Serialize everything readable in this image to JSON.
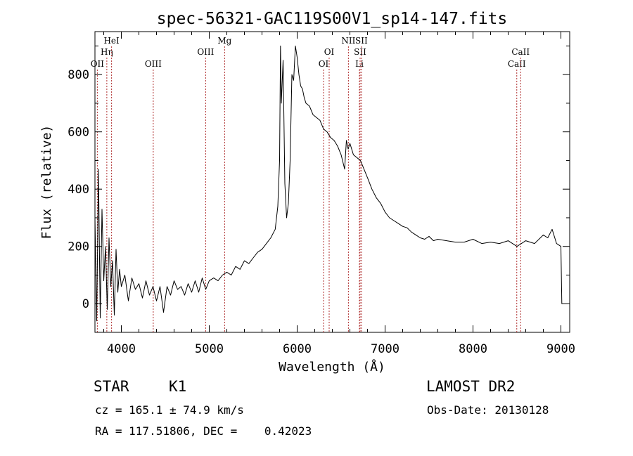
{
  "chart_data": {
    "type": "line",
    "title": "spec-56321-GAC119S00V1_sp14-147.fits",
    "xlabel": "Wavelength (Å)",
    "ylabel": "Flux (relative)",
    "xlim": [
      3700,
      9100
    ],
    "ylim": [
      -100,
      950
    ],
    "xticks": [
      4000,
      5000,
      6000,
      7000,
      8000,
      9000
    ],
    "yticks": [
      0,
      200,
      400,
      600,
      800
    ],
    "grid": false,
    "line_color": "#000000",
    "marker_color": "#b03030",
    "series": [
      {
        "x": [
          3700,
          3720,
          3740,
          3760,
          3780,
          3800,
          3820,
          3840,
          3860,
          3880,
          3900,
          3920,
          3940,
          3960,
          3980,
          4000,
          4040,
          4080,
          4120,
          4160,
          4200,
          4240,
          4280,
          4320,
          4360,
          4400,
          4440,
          4480,
          4520,
          4560,
          4600,
          4640,
          4680,
          4720,
          4760,
          4800,
          4840,
          4880,
          4920,
          4960,
          5000,
          5050,
          5100,
          5150,
          5200,
          5250,
          5300,
          5350,
          5400,
          5450,
          5500,
          5550,
          5600,
          5650,
          5700,
          5750,
          5780,
          5800,
          5810,
          5820,
          5840,
          5860,
          5880,
          5900,
          5920,
          5940,
          5960,
          5980,
          6000,
          6020,
          6040,
          6060,
          6080,
          6100,
          6140,
          6180,
          6220,
          6260,
          6300,
          6340,
          6380,
          6420,
          6460,
          6500,
          6540,
          6560,
          6580,
          6600,
          6640,
          6680,
          6720,
          6760,
          6800,
          6850,
          6900,
          6950,
          7000,
          7050,
          7100,
          7150,
          7200,
          7250,
          7300,
          7350,
          7400,
          7450,
          7500,
          7550,
          7600,
          7700,
          7800,
          7900,
          8000,
          8100,
          8200,
          8300,
          8400,
          8500,
          8600,
          8700,
          8800,
          8850,
          8900,
          8950,
          9000,
          9010,
          9020
        ],
        "y": [
          300,
          -60,
          470,
          -50,
          330,
          80,
          200,
          -20,
          230,
          60,
          150,
          -40,
          190,
          40,
          120,
          60,
          100,
          10,
          90,
          50,
          70,
          20,
          80,
          30,
          60,
          10,
          60,
          -30,
          60,
          30,
          80,
          50,
          60,
          30,
          70,
          40,
          80,
          40,
          90,
          50,
          80,
          90,
          80,
          100,
          110,
          100,
          130,
          120,
          150,
          140,
          160,
          180,
          190,
          210,
          230,
          260,
          340,
          500,
          900,
          700,
          850,
          420,
          300,
          350,
          500,
          800,
          780,
          900,
          860,
          800,
          760,
          750,
          720,
          700,
          690,
          660,
          650,
          640,
          610,
          600,
          580,
          570,
          550,
          520,
          470,
          570,
          540,
          560,
          520,
          510,
          500,
          470,
          440,
          400,
          370,
          350,
          320,
          300,
          290,
          280,
          270,
          265,
          250,
          240,
          230,
          225,
          235,
          220,
          225,
          220,
          215,
          215,
          225,
          210,
          215,
          210,
          220,
          200,
          220,
          210,
          240,
          230,
          260,
          210,
          200,
          0,
          0
        ]
      }
    ],
    "line_markers": [
      {
        "label": "OII",
        "x": 3727,
        "row": 3
      },
      {
        "label": "Hη",
        "x": 3835,
        "row": 2
      },
      {
        "label": "HeI",
        "x": 3889,
        "row": 1
      },
      {
        "label": "OIII",
        "x": 4363,
        "row": 3
      },
      {
        "label": "OIII",
        "x": 4959,
        "row": 2
      },
      {
        "label": "Mg",
        "x": 5175,
        "row": 1
      },
      {
        "label": "OI",
        "x": 6300,
        "row": 3
      },
      {
        "label": "OI",
        "x": 6364,
        "row": 2
      },
      {
        "label": "NII",
        "x": 6583,
        "row": 1
      },
      {
        "label": "Li",
        "x": 6708,
        "row": 3
      },
      {
        "label": "SII",
        "x": 6716,
        "row": 2
      },
      {
        "label": "SII",
        "x": 6731,
        "row": 1
      },
      {
        "label": "CaII",
        "x": 8498,
        "row": 3
      },
      {
        "label": "CaII",
        "x": 8542,
        "row": 2
      }
    ]
  },
  "info": {
    "class": "STAR",
    "subclass": "K1",
    "survey": "LAMOST DR2",
    "redshift": "cz = 165.1 ± 74.9 km/s",
    "obs_date": "Obs-Date: 20130128",
    "coords": "RA = 117.51806, DEC =    0.42023"
  }
}
